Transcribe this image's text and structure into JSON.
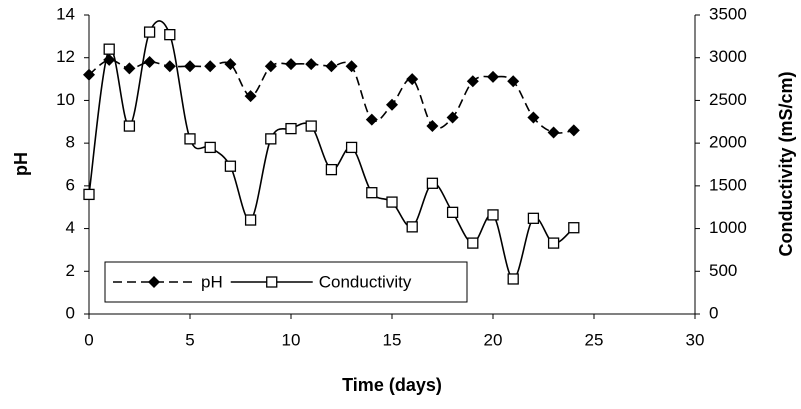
{
  "chart_data": {
    "type": "line",
    "x_label": "Time (days)",
    "y_label": "pH",
    "y2_label": "Conductivity (mS/cm)",
    "x": [
      0,
      1,
      2,
      3,
      4,
      5,
      6,
      7,
      8,
      9,
      10,
      11,
      12,
      13,
      14,
      15,
      16,
      17,
      18,
      19,
      20,
      21,
      22,
      23,
      24
    ],
    "series": [
      {
        "name": "pH",
        "color": "#000000",
        "dashed": true,
        "marker": "diamond",
        "values": [
          11.2,
          11.9,
          11.5,
          11.8,
          11.6,
          11.6,
          11.6,
          11.7,
          10.2,
          11.6,
          11.7,
          11.7,
          11.6,
          11.6,
          9.1,
          9.8,
          11.0,
          8.8,
          9.2,
          10.9,
          11.1,
          10.9,
          9.2,
          8.5,
          8.6
        ]
      },
      {
        "name": "Conductivity",
        "color": "#000000",
        "dashed": false,
        "marker": "square",
        "axis": "y2",
        "values": [
          1400,
          3100,
          2200,
          3300,
          3270,
          2050,
          1950,
          1730,
          1100,
          2050,
          2170,
          2200,
          1690,
          1950,
          1420,
          1310,
          1020,
          1530,
          1190,
          830,
          1160,
          410,
          1120,
          830,
          1010
        ]
      }
    ],
    "xlim": [
      0,
      30
    ],
    "xticks": [
      0,
      5,
      10,
      15,
      20,
      25,
      30
    ],
    "ylim": [
      0,
      14
    ],
    "yticks": [
      0,
      2,
      4,
      6,
      8,
      10,
      12,
      14
    ],
    "y2lim": [
      0,
      3500
    ],
    "y2ticks": [
      0,
      500,
      1000,
      1500,
      2000,
      2500,
      3000,
      3500
    ],
    "smooth": true,
    "grid": false,
    "legend": "lower left"
  }
}
